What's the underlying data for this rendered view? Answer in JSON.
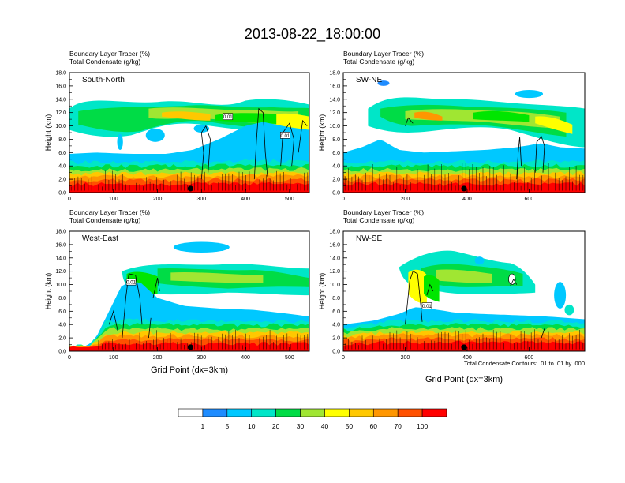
{
  "figure": {
    "title": "2013-08-22_18:00:00",
    "x_label": "Grid Point (dx=3km)",
    "contour_note": "Total Condensate Contours: .01 to .01 by .000"
  },
  "colorbar": {
    "levels": [
      "1",
      "5",
      "10",
      "20",
      "30",
      "40",
      "50",
      "60",
      "70",
      "100"
    ],
    "colors": [
      "#ffffff",
      "#1e8cff",
      "#00c8ff",
      "#00e6c8",
      "#00dc46",
      "#00e600",
      "#a0e632",
      "#ffff00",
      "#ffc800",
      "#ff9600",
      "#ff5000",
      "#ff0000"
    ]
  },
  "chart_data": [
    {
      "type": "heatmap",
      "panel": "South-North",
      "header1": "Boundary Layer Tracer   (%)",
      "header2": "Total Condensate   (g/kg)",
      "ylabel": "Height (km)",
      "x_ticks": [
        "0",
        "100",
        "200",
        "300",
        "400",
        "500"
      ],
      "xlim": [
        0,
        545
      ],
      "y_ticks": [
        "0.0",
        "2.0",
        "4.0",
        "6.0",
        "8.0",
        "10.0",
        "12.0",
        "14.0",
        "16.0",
        "18.0"
      ],
      "ylim": [
        0,
        18
      ],
      "marker_x": 275,
      "contour_labels": [
        "0.01",
        "0.01"
      ]
    },
    {
      "type": "heatmap",
      "panel": "SW-NE",
      "header1": "Boundary Layer Tracer   (%)",
      "header2": "Total Condensate   (g/kg)",
      "ylabel": "Height (km)",
      "x_ticks": [
        "0",
        "200",
        "400",
        "600"
      ],
      "xlim": [
        0,
        780
      ],
      "y_ticks": [
        "0.0",
        "2.0",
        "4.0",
        "6.0",
        "8.0",
        "10.0",
        "12.0",
        "14.0",
        "16.0",
        "18.0"
      ],
      "ylim": [
        0,
        18
      ],
      "marker_x": 390,
      "contour_labels": []
    },
    {
      "type": "heatmap",
      "panel": "West-East",
      "header1": "Boundary Layer Tracer   (%)",
      "header2": "Total Condensate   (g/kg)",
      "ylabel": "Height (km)",
      "x_ticks": [
        "0",
        "100",
        "200",
        "300",
        "400",
        "500"
      ],
      "xlim": [
        0,
        545
      ],
      "y_ticks": [
        "0.0",
        "2.0",
        "4.0",
        "6.0",
        "8.0",
        "10.0",
        "12.0",
        "14.0",
        "16.0",
        "18.0"
      ],
      "ylim": [
        0,
        18
      ],
      "marker_x": 275,
      "contour_labels": [
        "0.01"
      ]
    },
    {
      "type": "heatmap",
      "panel": "NW-SE",
      "header1": "Boundary Layer Tracer   (%)",
      "header2": "Total Condensate   (g/kg)",
      "ylabel": "Height (km)",
      "x_ticks": [
        "0",
        "200",
        "400",
        "600"
      ],
      "xlim": [
        0,
        780
      ],
      "y_ticks": [
        "0.0",
        "2.0",
        "4.0",
        "6.0",
        "8.0",
        "10.0",
        "12.0",
        "14.0",
        "16.0",
        "18.0"
      ],
      "ylim": [
        0,
        18
      ],
      "marker_x": 390,
      "contour_labels": [
        "0.01"
      ]
    }
  ]
}
